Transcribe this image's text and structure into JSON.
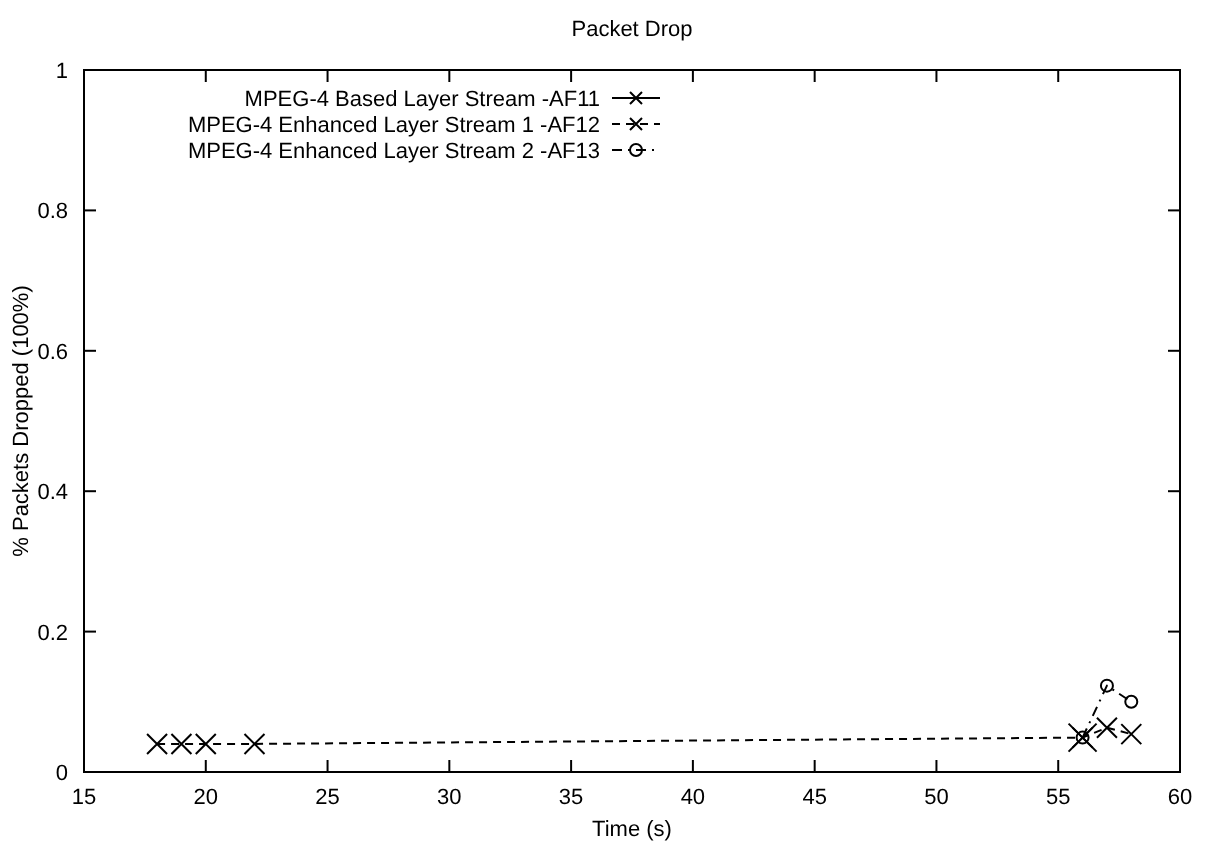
{
  "chart_data": {
    "type": "line",
    "title": "Packet Drop",
    "xlabel": "Time (s)",
    "ylabel": "% Packets Dropped (100%)",
    "xlim": [
      15,
      60
    ],
    "xticks": [
      15,
      20,
      25,
      30,
      35,
      40,
      45,
      50,
      55,
      60
    ],
    "ylim": [
      0,
      1
    ],
    "yticks": [
      0,
      0.2,
      0.4,
      0.6,
      0.8,
      1
    ],
    "grid": false,
    "legend": "top left",
    "series": [
      {
        "name": "MPEG-4 Based Layer Stream -AF11",
        "color": "#000000",
        "marker": "cross",
        "line_style": "solid",
        "x": [
          56
        ],
        "values": [
          0.049
        ]
      },
      {
        "name": "MPEG-4 Enhanced Layer Stream 1 -AF12",
        "color": "#000000",
        "marker": "cross",
        "line_style": "dashed",
        "x": [
          18,
          19,
          20,
          22,
          56,
          57,
          58
        ],
        "values": [
          0.04,
          0.04,
          0.04,
          0.04,
          0.049,
          0.063,
          0.054
        ]
      },
      {
        "name": "MPEG-4 Enhanced Layer Stream 2 -AF13",
        "color": "#000000",
        "marker": "circle",
        "line_style": "dotted",
        "x": [
          56,
          57,
          58
        ],
        "values": [
          0.049,
          0.123,
          0.1
        ]
      }
    ]
  }
}
